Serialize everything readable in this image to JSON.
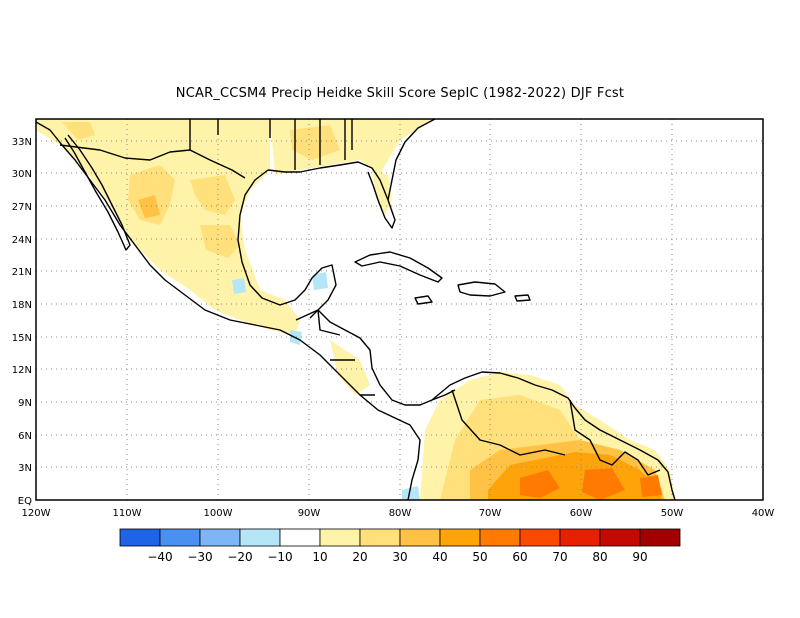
{
  "title": "NCAR_CCSM4 Precip Heidke Skill Score SepIC (1982-2022) DJF Fcst",
  "map": {
    "lon_range": [
      -120,
      -40
    ],
    "lat_range": [
      0,
      35
    ],
    "lon_ticks": [
      "120W",
      "110W",
      "100W",
      "90W",
      "80W",
      "70W",
      "60W",
      "50W",
      "40W"
    ],
    "lat_ticks": [
      "EQ",
      "3N",
      "6N",
      "9N",
      "12N",
      "15N",
      "18N",
      "21N",
      "24N",
      "27N",
      "30N",
      "33N"
    ],
    "grid": "dotted"
  },
  "colorbar": {
    "colors": [
      "#1f63e6",
      "#4a90f0",
      "#7eb6f5",
      "#b4e6f8",
      "#ffffff",
      "#fff3aa",
      "#ffe07a",
      "#ffc245",
      "#ffa30a",
      "#ff7a00",
      "#fa4a00",
      "#e62000",
      "#c20a00",
      "#a00000"
    ],
    "labels": [
      "−40",
      "−30",
      "−20",
      "−10",
      "10",
      "20",
      "30",
      "40",
      "50",
      "60",
      "70",
      "80",
      "90"
    ]
  }
}
